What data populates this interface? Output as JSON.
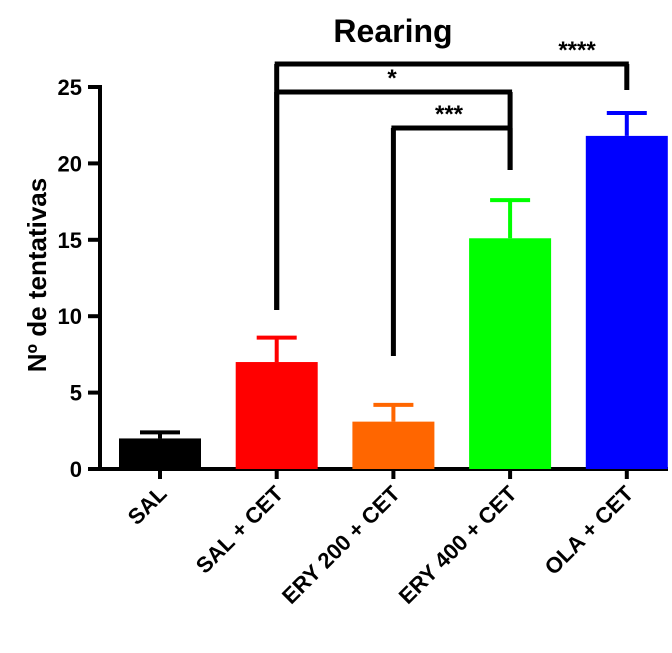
{
  "chart_data": {
    "type": "bar",
    "title": "Rearing",
    "xlabel": "",
    "ylabel": "Nº de tentativas",
    "ylim": [
      0,
      25
    ],
    "yticks": [
      0,
      5,
      10,
      15,
      20,
      25
    ],
    "grid": false,
    "legend": "none",
    "categories": [
      "SAL",
      "SAL + CET",
      "ERY 200 + CET",
      "ERY 400 + CET",
      "OLA + CET"
    ],
    "values": [
      2.0,
      7.0,
      3.1,
      15.1,
      21.8
    ],
    "errors": [
      0.4,
      1.6,
      1.1,
      2.5,
      1.5
    ],
    "colors": [
      "#000000",
      "#ff0000",
      "#ff6600",
      "#00ff00",
      "#0000ff"
    ],
    "significance": [
      {
        "from": "SAL + CET",
        "to": "OLA + CET",
        "label": "****"
      },
      {
        "from": "SAL + CET",
        "to": "ERY 400 + CET",
        "label": "*"
      },
      {
        "from": "ERY 200 + CET",
        "to": "ERY 400 + CET",
        "label": "***"
      }
    ]
  }
}
